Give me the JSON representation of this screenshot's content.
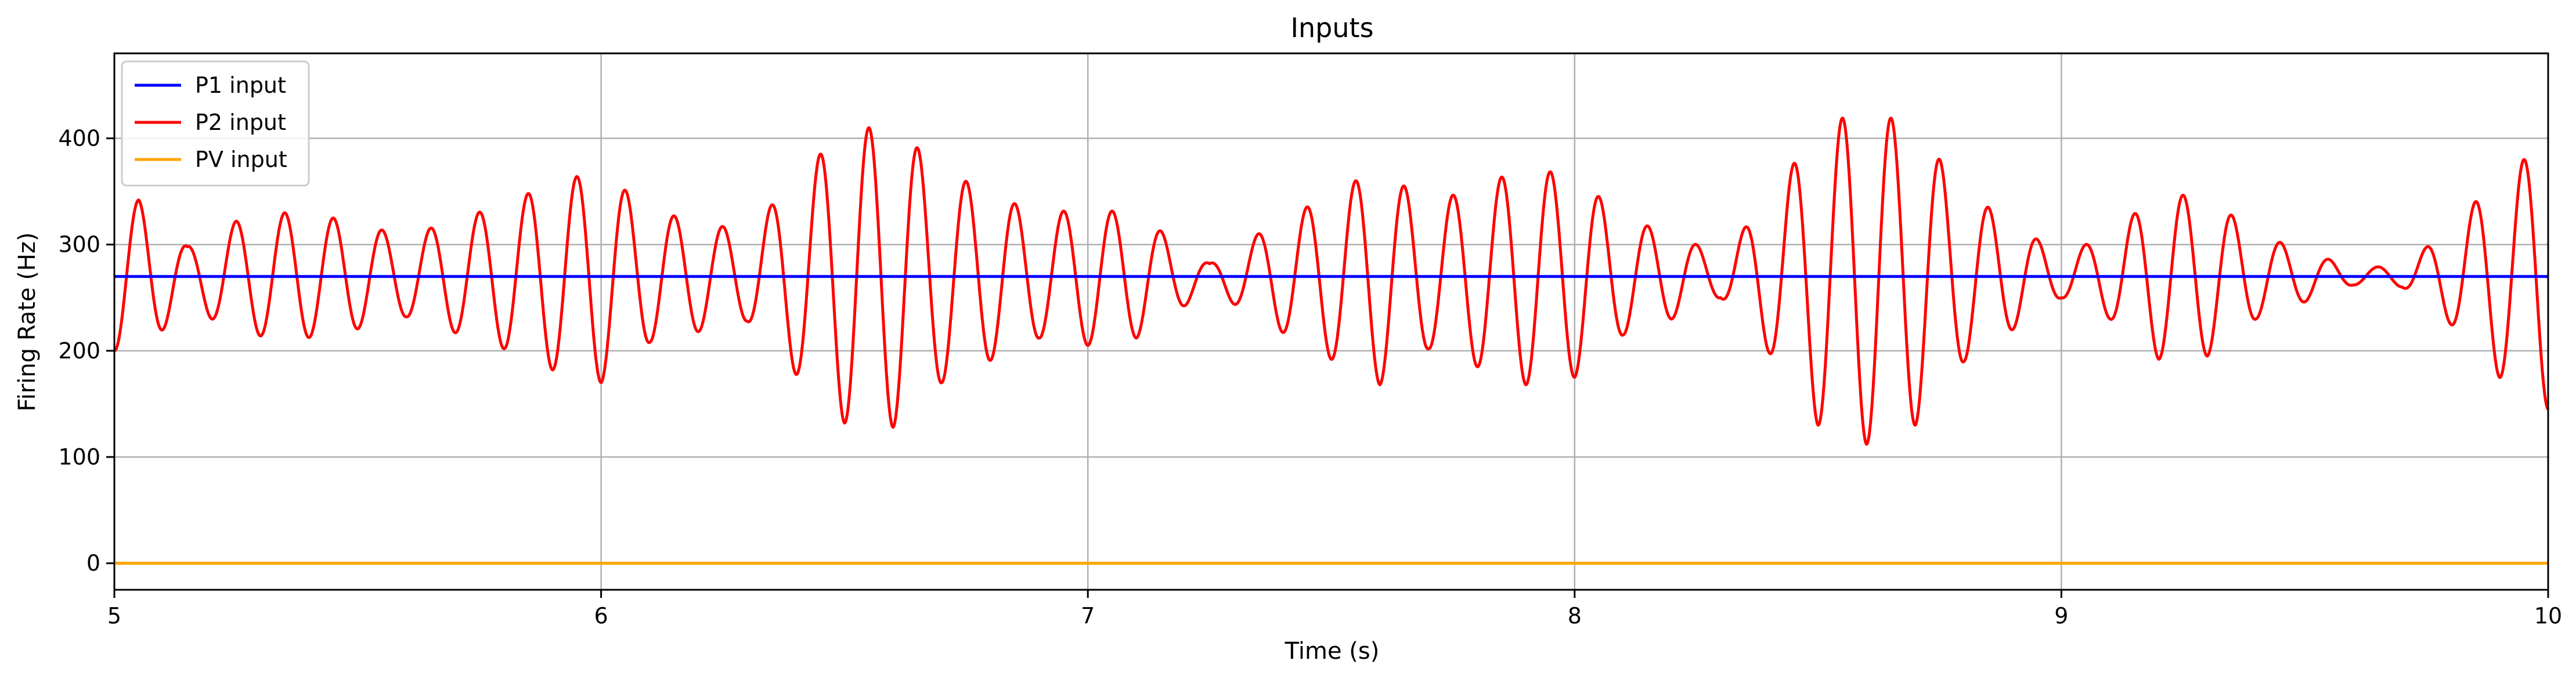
{
  "chart_data": {
    "type": "line",
    "title": "Inputs",
    "xlabel": "Time (s)",
    "ylabel": "Firing Rate (Hz)",
    "xlim": [
      5,
      10
    ],
    "ylim": [
      -25,
      480
    ],
    "xticks": [
      5,
      6,
      7,
      8,
      9,
      10
    ],
    "yticks": [
      0,
      100,
      200,
      300,
      400
    ],
    "grid": true,
    "legend_position": "top-left",
    "series": [
      {
        "name": "P1 input",
        "color": "#0000ff",
        "kind": "constant",
        "x": [
          5,
          10
        ],
        "y": [
          270,
          270
        ]
      },
      {
        "name": "P2 input",
        "color": "#ff0000",
        "kind": "oscillation",
        "baseline": 270,
        "cycle_period_s": 0.1,
        "envelope_t": [
          5.0,
          5.05,
          5.15,
          5.25,
          5.35,
          5.45,
          5.6,
          5.8,
          5.9,
          6.0,
          6.1,
          6.3,
          6.4,
          6.5,
          6.6,
          6.7,
          6.9,
          7.0,
          7.1,
          7.25,
          7.35,
          7.5,
          7.6,
          7.7,
          7.9,
          8.0,
          8.1,
          8.2,
          8.3,
          8.4,
          8.5,
          8.6,
          8.7,
          8.8,
          9.0,
          9.1,
          9.2,
          9.3,
          9.4,
          9.6,
          9.7,
          9.8,
          9.9,
          10.0
        ],
        "envelope_amp": [
          70,
          72,
          28,
          52,
          60,
          55,
          38,
          68,
          88,
          100,
          62,
          42,
          92,
          138,
          142,
          100,
          58,
          65,
          58,
          12,
          40,
          78,
          102,
          68,
          102,
          95,
          55,
          40,
          20,
          72,
          140,
          158,
          140,
          80,
          20,
          40,
          78,
          75,
          40,
          8,
          10,
          45,
          95,
          125
        ]
      },
      {
        "name": "PV input",
        "color": "#ffa500",
        "kind": "constant",
        "x": [
          5,
          10
        ],
        "y": [
          0,
          0
        ]
      }
    ]
  }
}
